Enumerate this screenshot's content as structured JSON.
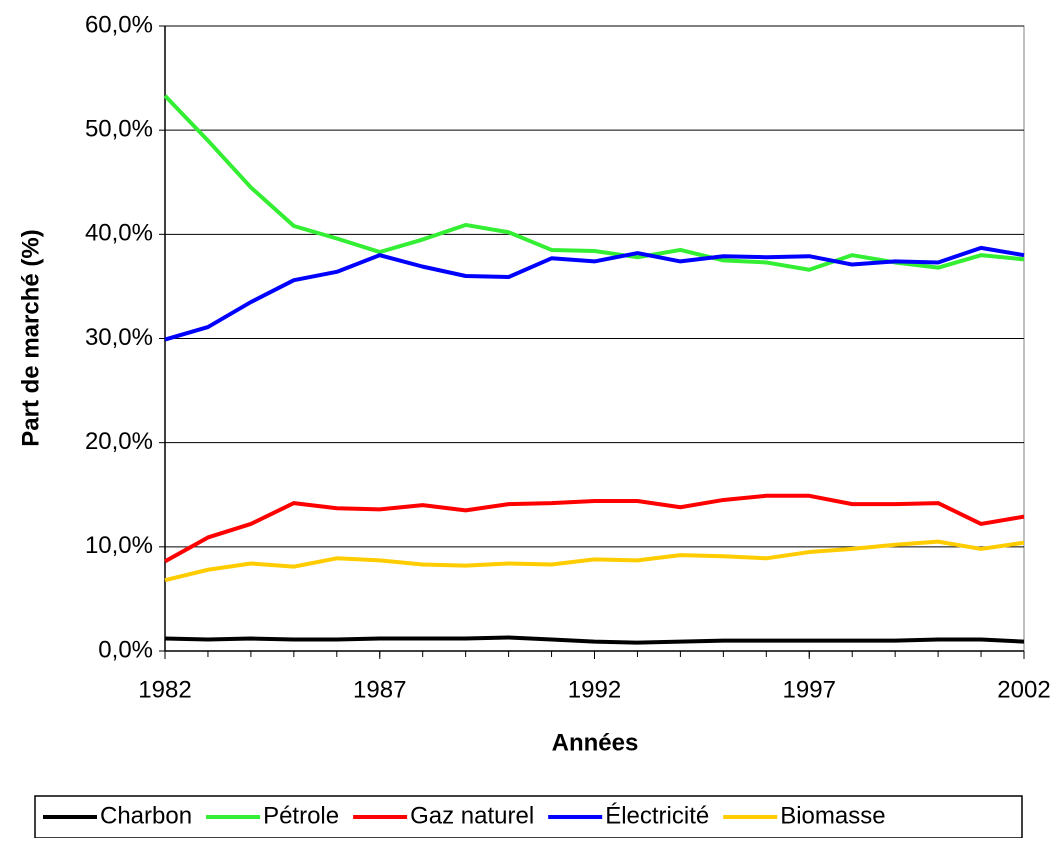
{
  "chart_data": {
    "type": "line",
    "x": [
      1982,
      1983,
      1984,
      1985,
      1986,
      1987,
      1988,
      1989,
      1990,
      1991,
      1992,
      1993,
      1994,
      1995,
      1996,
      1997,
      1998,
      1999,
      2000,
      2001,
      2002
    ],
    "series": [
      {
        "name": "Charbon",
        "color": "#000000",
        "values": [
          1.2,
          1.1,
          1.2,
          1.1,
          1.1,
          1.2,
          1.2,
          1.2,
          1.3,
          1.1,
          0.9,
          0.8,
          0.9,
          1.0,
          1.0,
          1.0,
          1.0,
          1.0,
          1.1,
          1.1,
          0.9
        ]
      },
      {
        "name": "Pétrole",
        "color": "#33ee33",
        "values": [
          53.3,
          49.0,
          44.5,
          40.8,
          39.6,
          38.3,
          39.5,
          40.9,
          40.2,
          38.5,
          38.4,
          37.8,
          38.5,
          37.5,
          37.3,
          36.6,
          38.0,
          37.3,
          36.8,
          38.0,
          37.6
        ]
      },
      {
        "name": "Gaz naturel",
        "color": "#ff0000",
        "values": [
          8.6,
          10.9,
          12.2,
          14.2,
          13.7,
          13.6,
          14.0,
          13.5,
          14.1,
          14.2,
          14.4,
          14.4,
          13.8,
          14.5,
          14.9,
          14.9,
          14.1,
          14.1,
          14.2,
          12.2,
          12.9
        ]
      },
      {
        "name": "Électricité",
        "color": "#0000ff",
        "values": [
          29.9,
          31.1,
          33.5,
          35.6,
          36.4,
          38.0,
          36.9,
          36.0,
          35.9,
          37.7,
          37.4,
          38.2,
          37.4,
          37.9,
          37.8,
          37.9,
          37.1,
          37.4,
          37.3,
          38.7,
          38.0
        ]
      },
      {
        "name": "Biomasse",
        "color": "#ffcc00",
        "values": [
          6.8,
          7.8,
          8.4,
          8.1,
          8.9,
          8.7,
          8.3,
          8.2,
          8.4,
          8.3,
          8.8,
          8.7,
          9.2,
          9.1,
          8.9,
          9.5,
          9.8,
          10.2,
          10.5,
          9.8,
          10.4
        ]
      }
    ],
    "xlim": [
      1982,
      2002
    ],
    "xticks": [
      1982,
      1987,
      1992,
      1997,
      2002
    ],
    "ylim": [
      0,
      60
    ],
    "yticks": [
      {
        "value": 0,
        "label": "0,0%"
      },
      {
        "value": 10,
        "label": "10,0%"
      },
      {
        "value": 20,
        "label": "20,0%"
      },
      {
        "value": 30,
        "label": "30,0%"
      },
      {
        "value": 40,
        "label": "40,0%"
      },
      {
        "value": 50,
        "label": "50,0%"
      },
      {
        "value": 60,
        "label": "60,0%"
      }
    ],
    "xlabel": "Années",
    "ylabel": "Part de marché (%)",
    "grid": true,
    "legend": "bottom"
  }
}
